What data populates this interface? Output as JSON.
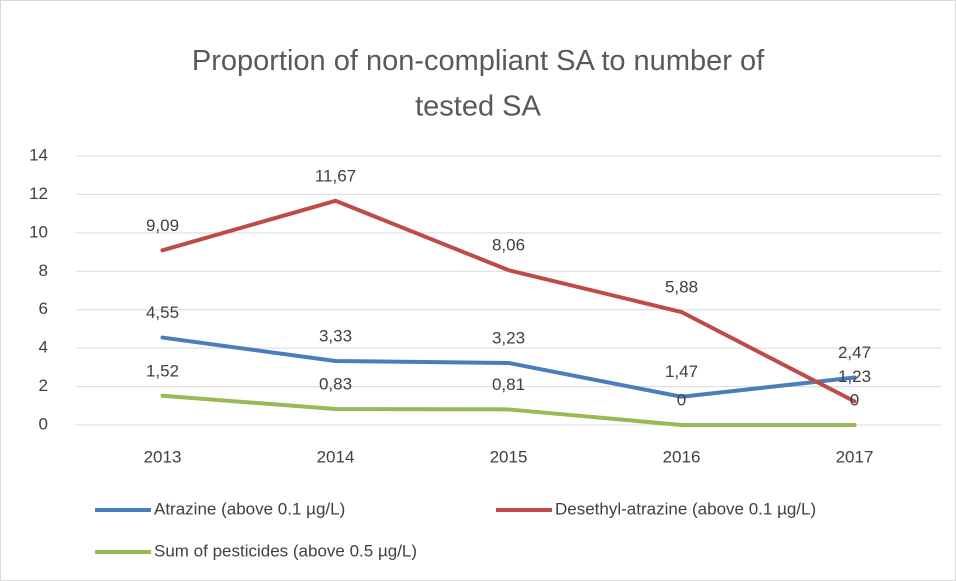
{
  "chart_data": {
    "type": "line",
    "title": "Proportion of non-compliant SA to number of tested SA",
    "categories": [
      "2013",
      "2014",
      "2015",
      "2016",
      "2017"
    ],
    "series": [
      {
        "name": "Atrazine (above 0.1 µg/L)",
        "color": "#4a7ebb",
        "values": [
          4.55,
          3.33,
          3.23,
          1.47,
          2.47
        ],
        "value_labels": [
          "4,55",
          "3,33",
          "3,23",
          "1,47",
          "2,47"
        ]
      },
      {
        "name": "Desethyl-atrazine (above 0.1 µg/L)",
        "color": "#be4b48",
        "values": [
          9.09,
          11.67,
          8.06,
          5.88,
          1.23
        ],
        "value_labels": [
          "9,09",
          "11,67",
          "8,06",
          "5,88",
          "1,23"
        ]
      },
      {
        "name": "Sum of pesticides (above 0.5 µg/L)",
        "color": "#98b954",
        "values": [
          1.52,
          0.83,
          0.81,
          0,
          0
        ],
        "value_labels": [
          "1,52",
          "0,83",
          "0,81",
          "0",
          "0"
        ]
      }
    ],
    "ylim": [
      0,
      14
    ],
    "yticks": [
      0,
      2,
      4,
      6,
      8,
      10,
      12,
      14
    ],
    "grid": true
  }
}
